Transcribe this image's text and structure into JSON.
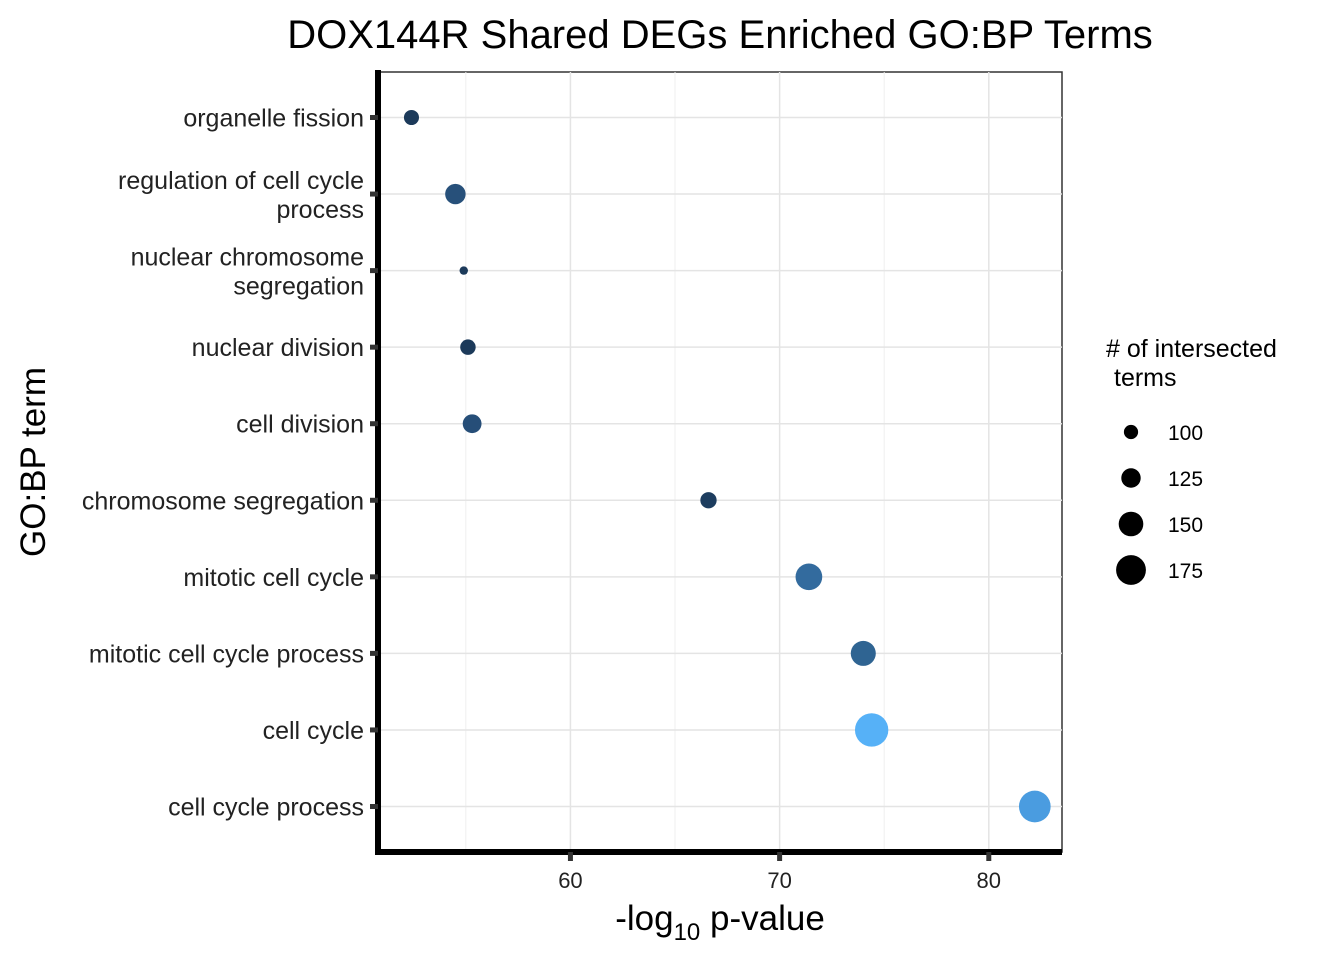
{
  "chart_data": {
    "type": "scatter",
    "title": "DOX144R Shared DEGs Enriched GO:BP Terms",
    "ylabel": "GO:BP term",
    "xlabel_parts": [
      "-log",
      "10",
      " p-value"
    ],
    "xlim": [
      50.8,
      83.5
    ],
    "xticks": [
      60,
      70,
      80
    ],
    "grid": true,
    "categories": [
      [
        "organelle fission"
      ],
      [
        "regulation of cell cycle",
        "process"
      ],
      [
        "nuclear chromosome",
        "segregation"
      ],
      [
        "nuclear division"
      ],
      [
        "cell division"
      ],
      [
        "chromosome segregation"
      ],
      [
        "mitotic cell cycle"
      ],
      [
        "mitotic cell cycle process"
      ],
      [
        "cell cycle"
      ],
      [
        "cell cycle process"
      ]
    ],
    "points": [
      {
        "term": "organelle fission",
        "x": 52.4,
        "size": 104,
        "color": "#1c3a5a"
      },
      {
        "term": "regulation of cell cycle process",
        "x": 54.5,
        "size": 130,
        "color": "#27507a"
      },
      {
        "term": "nuclear chromosome segregation",
        "x": 54.9,
        "size": 72,
        "color": "#1c3a5a"
      },
      {
        "term": "nuclear division",
        "x": 55.1,
        "size": 106,
        "color": "#1c3a5a"
      },
      {
        "term": "cell division",
        "x": 55.3,
        "size": 122,
        "color": "#264e78"
      },
      {
        "term": "chromosome segregation",
        "x": 66.6,
        "size": 110,
        "color": "#1d3d5f"
      },
      {
        "term": "mitotic cell cycle",
        "x": 71.4,
        "size": 160,
        "color": "#336b9e"
      },
      {
        "term": "mitotic cell cycle process",
        "x": 74.0,
        "size": 152,
        "color": "#2f6492"
      },
      {
        "term": "cell cycle",
        "x": 74.4,
        "size": 192,
        "color": "#56b1f7"
      },
      {
        "term": "cell cycle process",
        "x": 82.2,
        "size": 184,
        "color": "#4a9ce0"
      }
    ],
    "legend": {
      "title_lines": [
        "# of intersected",
        "terms"
      ],
      "placement": "right",
      "entries": [
        100,
        125,
        150,
        175
      ]
    }
  }
}
